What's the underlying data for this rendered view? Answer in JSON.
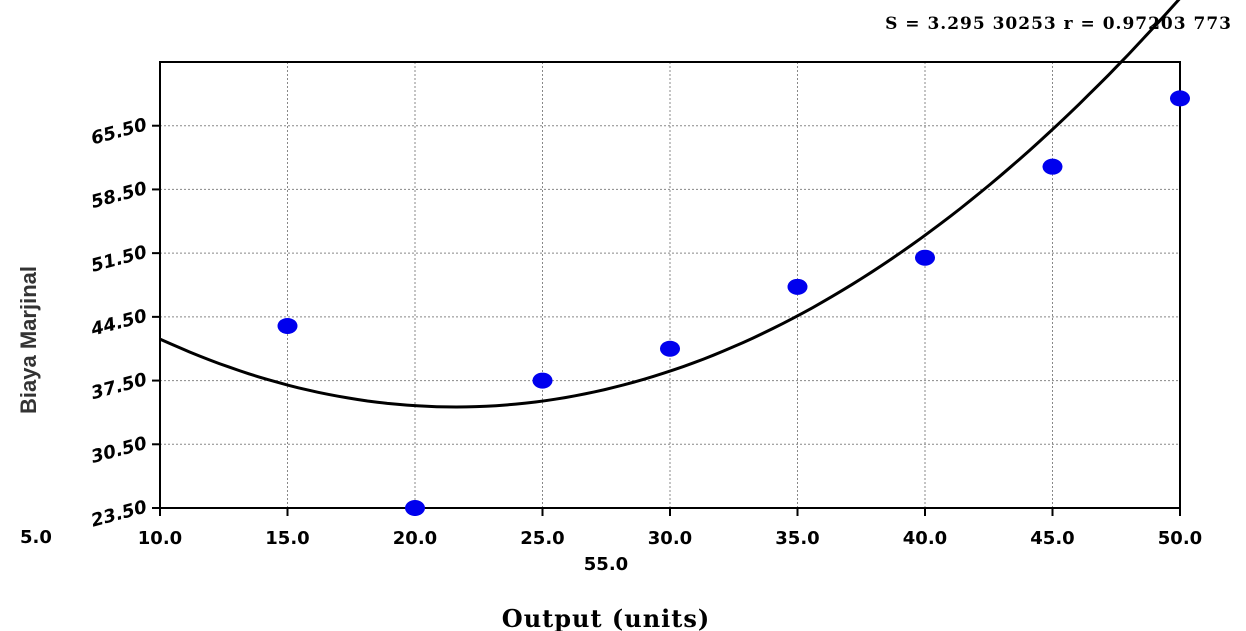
{
  "stats": {
    "text": "S = 3.295 30253  r = 0.97203 773"
  },
  "chart_data": {
    "type": "scatter",
    "xlabel": "Output (units)",
    "ylabel": "Biaya Marjinal",
    "xlim": [
      10,
      50
    ],
    "ylim": [
      23.5,
      72.5
    ],
    "x_ticks": [
      10,
      15,
      20,
      25,
      30,
      35,
      40,
      45,
      50
    ],
    "x_tick_labels": [
      "10.0",
      "15.0",
      "20.0",
      "25.0",
      "30.0",
      "35.0",
      "40.0",
      "45.0",
      "50.0"
    ],
    "y_ticks": [
      23.5,
      30.5,
      37.5,
      44.5,
      51.5,
      58.5,
      65.5
    ],
    "y_tick_labels": [
      "23.50",
      "30.50",
      "37.50",
      "44.50",
      "51.50",
      "58.50",
      "65.50"
    ],
    "extra_labels": [
      "5.0",
      "55.0"
    ],
    "grid": true,
    "points": {
      "x": [
        15,
        20,
        25,
        30,
        35,
        40,
        45,
        50
      ],
      "y": [
        43.5,
        23.5,
        37.5,
        41,
        47.8,
        51,
        61,
        68.5
      ]
    },
    "fit": {
      "type": "quadratic",
      "coefficients": [
        0.0556,
        -2.4,
        60.5
      ],
      "x_range": [
        10,
        56.5
      ]
    },
    "colors": {
      "points": "#0000ee",
      "fit": "#000000",
      "grid": "#888888",
      "axes": "#000000"
    }
  }
}
